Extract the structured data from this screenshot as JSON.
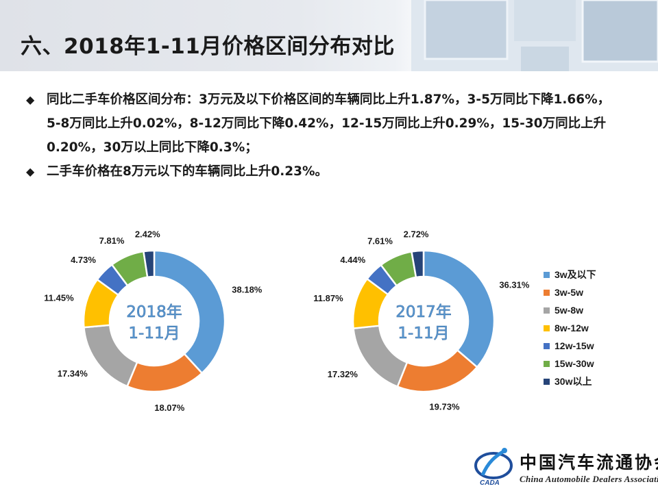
{
  "header": {
    "title": "六、2018年1-11月价格区间分布对比"
  },
  "bullets": [
    {
      "text": "同比二手车价格区间分布：3万元及以下价格区间的车辆同比上升1.87%，3-5万同比下降1.66%，5-8万同比上升0.02%，8-12万同比下降0.42%，12-15万同比上升0.29%，15-30万同比上升0.20%，30万以上同比下降0.3%；"
    },
    {
      "text": "二手车价格在8万元以下的车辆同比上升0.23%。"
    }
  ],
  "colors": {
    "series": [
      "#5b9bd5",
      "#ed7d31",
      "#a5a5a5",
      "#ffc000",
      "#4472c4",
      "#70ad47",
      "#264478"
    ],
    "center_text": "#5b9bd5"
  },
  "chart_data": [
    {
      "type": "pie",
      "variant": "donut",
      "center_label": [
        "2018年",
        "1-11月"
      ],
      "categories": [
        "3w及以下",
        "3w-5w",
        "5w-8w",
        "8w-12w",
        "12w-15w",
        "15w-30w",
        "30w以上"
      ],
      "values": [
        38.18,
        18.07,
        17.34,
        11.45,
        4.73,
        7.81,
        2.42
      ],
      "data_labels": [
        "38.18%",
        "18.07%",
        "17.34%",
        "11.45%",
        "4.73%",
        "7.81%",
        "2.42%"
      ]
    },
    {
      "type": "pie",
      "variant": "donut",
      "center_label": [
        "2017年",
        "1-11月"
      ],
      "categories": [
        "3w及以下",
        "3w-5w",
        "5w-8w",
        "8w-12w",
        "12w-15w",
        "15w-30w",
        "30w以上"
      ],
      "values": [
        36.31,
        19.73,
        17.32,
        11.87,
        4.44,
        7.61,
        2.72
      ],
      "data_labels": [
        "36.31%",
        "19.73%",
        "17.32%",
        "11.87%",
        "4.44%",
        "7.61%",
        "2.72%"
      ],
      "legend": {
        "position": "right"
      }
    }
  ],
  "logo": {
    "name_cn": "中国汽车流通协会",
    "name_en": "China Automobile Dealers Association",
    "abbr": "CADA"
  }
}
